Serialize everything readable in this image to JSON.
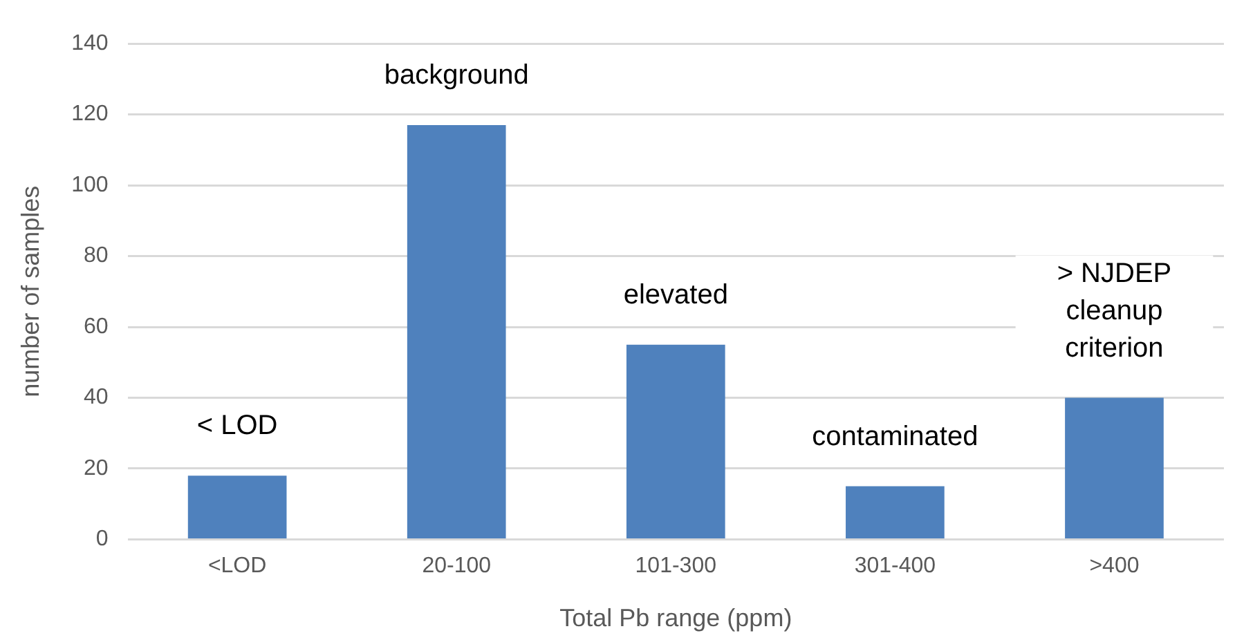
{
  "chart_data": {
    "type": "bar",
    "categories": [
      "<LOD",
      "20-100",
      "101-300",
      "301-400",
      ">400"
    ],
    "values": [
      18,
      117,
      55,
      15,
      40
    ],
    "color": "#4f81bd",
    "xlabel": "Total Pb range (ppm)",
    "ylabel": "number of samples",
    "ylim": [
      0,
      140
    ],
    "yticks": [
      0,
      20,
      40,
      60,
      80,
      100,
      120,
      140
    ],
    "grid": "y",
    "annotations": [
      "< LOD",
      "background",
      "elevated",
      "contaminated",
      "> NJDEP cleanup criterion"
    ]
  }
}
